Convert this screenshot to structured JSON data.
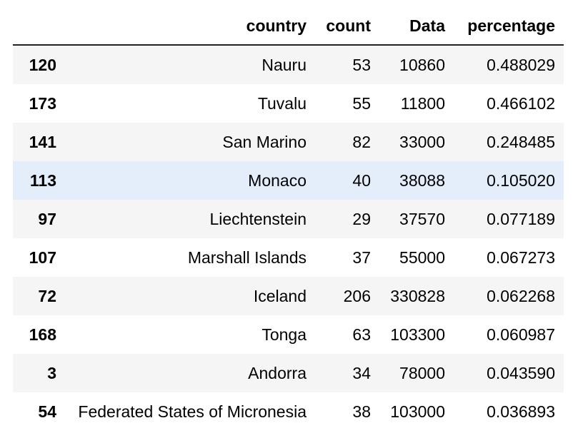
{
  "table": {
    "columns": [
      "country",
      "count",
      "Data",
      "percentage"
    ],
    "rows": [
      {
        "index": "120",
        "country": "Nauru",
        "count": "53",
        "data": "10860",
        "percentage": "0.488029"
      },
      {
        "index": "173",
        "country": "Tuvalu",
        "count": "55",
        "data": "11800",
        "percentage": "0.466102"
      },
      {
        "index": "141",
        "country": "San Marino",
        "count": "82",
        "data": "33000",
        "percentage": "0.248485"
      },
      {
        "index": "113",
        "country": "Monaco",
        "count": "40",
        "data": "38088",
        "percentage": "0.105020"
      },
      {
        "index": "97",
        "country": "Liechtenstein",
        "count": "29",
        "data": "37570",
        "percentage": "0.077189"
      },
      {
        "index": "107",
        "country": "Marshall Islands",
        "count": "37",
        "data": "55000",
        "percentage": "0.067273"
      },
      {
        "index": "72",
        "country": "Iceland",
        "count": "206",
        "data": "330828",
        "percentage": "0.062268"
      },
      {
        "index": "168",
        "country": "Tonga",
        "count": "63",
        "data": "103300",
        "percentage": "0.060987"
      },
      {
        "index": "3",
        "country": "Andorra",
        "count": "34",
        "data": "78000",
        "percentage": "0.043590"
      },
      {
        "index": "54",
        "country": "Federated States of Micronesia",
        "count": "38",
        "data": "103000",
        "percentage": "0.036893"
      }
    ],
    "highlighted_row": 3
  },
  "colors": {
    "stripe": "#f5f5f5",
    "highlight": "#e3eefa",
    "header_rule": "#222222"
  }
}
